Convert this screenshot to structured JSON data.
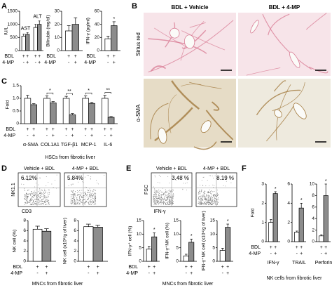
{
  "panel_labels": [
    "A",
    "B",
    "C",
    "D",
    "E",
    "F"
  ],
  "images": {
    "B": {
      "columns": [
        "BDL + Vehicle",
        "BDL + 4-MP"
      ],
      "rows": [
        "Sirius red",
        "α-SMA"
      ]
    },
    "D": {
      "titles": [
        "Vehicle + BDL",
        "4-MP + BDL"
      ],
      "gates": [
        "6.12%",
        "5.84%"
      ],
      "y_axis": "NK1.1",
      "x_axis": "CD3"
    },
    "E": {
      "titles": [
        "Vehicle + BDL",
        "4-MP + BDL"
      ],
      "gates": [
        "3.48 %",
        "8.19 %"
      ],
      "y_axis": "FSC",
      "x_axis": "IFN-γ"
    }
  },
  "captions": [
    "HSCs from fibrotic liver",
    "MNCs from fibrotic liver",
    "MNCs from fibrotic liver",
    "NK cells from fibrotic liver"
  ],
  "chart_data": [
    {
      "type": "bar",
      "ylabel": "IU/L",
      "ylim": [
        0,
        1500
      ],
      "yticks": [
        0,
        500,
        1000,
        1500
      ],
      "colors": [
        "#ffffff",
        "#8c8c8c"
      ],
      "values": [
        550,
        620,
        880,
        1000
      ],
      "errors": [
        80,
        60,
        120,
        130
      ],
      "stars": [
        null,
        null,
        null,
        null
      ],
      "group_labels": [
        "AST",
        "ALT"
      ],
      "group_label_position": "top",
      "rows": [
        {
          "label": "BDL",
          "signs": [
            "+",
            "+",
            "+",
            "+"
          ]
        },
        {
          "label": "4-MP",
          "signs": [
            "-",
            "+",
            "-",
            "+"
          ]
        }
      ]
    },
    {
      "type": "bar",
      "ylabel": "Bilirubin (mg/dl)",
      "ylim": [
        0,
        30
      ],
      "yticks": [
        0,
        10,
        20,
        30
      ],
      "colors": [
        "#ffffff",
        "#8c8c8c"
      ],
      "values": [
        15,
        20
      ],
      "errors": [
        4,
        5
      ],
      "stars": [
        null,
        null
      ],
      "rows": [
        {
          "label": "BDL",
          "signs": [
            "+",
            "+"
          ]
        },
        {
          "label": "4-MP",
          "signs": [
            "-",
            "+"
          ]
        }
      ]
    },
    {
      "type": "bar",
      "ylabel": "IFN-γ (pg/ml)",
      "ylim": [
        0,
        60
      ],
      "yticks": [
        0,
        20,
        40,
        60
      ],
      "colors": [
        "#ffffff",
        "#8c8c8c"
      ],
      "values": [
        18,
        38
      ],
      "errors": [
        4,
        6
      ],
      "stars": [
        null,
        "*"
      ],
      "rows": [
        {
          "label": "BDL",
          "signs": [
            "+",
            "+"
          ]
        },
        {
          "label": "4-MP",
          "signs": [
            "-",
            "+"
          ]
        }
      ]
    },
    {
      "type": "bar",
      "ylabel": "Fold",
      "ylim": [
        0,
        1.5
      ],
      "yticks": [
        0,
        0.5,
        {
          "value": 1,
          "label": "1.0"
        },
        1.5
      ],
      "colors": [
        "#ffffff",
        "#8c8c8c"
      ],
      "values": [
        1,
        0.75,
        1,
        0.82,
        1,
        0.35,
        1,
        0.8,
        1,
        0.25
      ],
      "errors": [
        0.12,
        0.04,
        0.1,
        0.05,
        0.08,
        0.05,
        0.1,
        0.04,
        0.12,
        0.03
      ],
      "stars": [
        null,
        null,
        null,
        "*",
        null,
        "**",
        null,
        "*",
        null,
        "**"
      ],
      "group_labels": [
        "α-SMA",
        "COL1A1",
        "TGF-β1",
        "MCP-1",
        "IL-6"
      ],
      "group_label_position": "bottom",
      "rows": [
        {
          "label": "BDL",
          "signs": [
            "+",
            "+",
            "+",
            "+",
            "+",
            "+",
            "+",
            "+",
            "+",
            "+"
          ]
        },
        {
          "label": "4-MP",
          "signs": [
            "-",
            "+",
            "-",
            "+",
            "-",
            "+",
            "-",
            "+",
            "-",
            "+"
          ]
        }
      ]
    },
    {
      "type": "bar",
      "ylabel": "NK cell (%)",
      "ylim": [
        0,
        8
      ],
      "yticks": [
        0,
        2,
        4,
        6,
        8
      ],
      "colors": [
        "#ffffff",
        "#8c8c8c"
      ],
      "values": [
        6.3,
        5.9
      ],
      "errors": [
        0.6,
        0.5
      ],
      "stars": [
        null,
        null
      ],
      "rows": [
        {
          "label": "BDL",
          "signs": [
            "+",
            "+"
          ]
        },
        {
          "label": "4-MP",
          "signs": [
            "-",
            "+"
          ]
        }
      ]
    },
    {
      "type": "bar",
      "ylabel": "NK cell (x10⁶/g of liver)",
      "ylim": [
        0,
        8
      ],
      "yticks": [
        0,
        2,
        4,
        6,
        8
      ],
      "colors": [
        "#ffffff",
        "#8c8c8c"
      ],
      "values": [
        6.8,
        6.7
      ],
      "errors": [
        0.5,
        0.4
      ],
      "stars": [
        null,
        null
      ],
      "rows": [
        {
          "signs": [
            "+",
            "+"
          ]
        },
        {
          "signs": [
            "-",
            "+"
          ]
        }
      ]
    },
    {
      "type": "bar",
      "ylabel": "IFN-γ⁺ cell (%)",
      "ylim": [
        0,
        15
      ],
      "yticks": [
        0,
        5,
        10,
        15
      ],
      "colors": [
        "#ffffff",
        "#8c8c8c"
      ],
      "values": [
        4.5,
        9
      ],
      "errors": [
        1,
        1.5
      ],
      "stars": [
        null,
        "*"
      ],
      "rows": [
        {
          "label": "BDL",
          "signs": [
            "+",
            "+"
          ]
        },
        {
          "label": "4-MP",
          "signs": [
            "-",
            "+"
          ]
        }
      ]
    },
    {
      "type": "bar",
      "ylabel": "IFN-γ⁺NK cell (%)",
      "ylim": [
        0,
        15
      ],
      "yticks": [
        0,
        5,
        10,
        15
      ],
      "colors": [
        "#ffffff",
        "#8c8c8c"
      ],
      "values": [
        2,
        7
      ],
      "errors": [
        0.6,
        1.2
      ],
      "stars": [
        null,
        "*"
      ],
      "rows": [
        {
          "signs": [
            "+",
            "+"
          ]
        },
        {
          "signs": [
            "-",
            "+"
          ]
        }
      ]
    },
    {
      "type": "bar",
      "ylabel": "IFN-γ⁺NK cell (x10⁴/g of liver)",
      "ylim": [
        0,
        15
      ],
      "yticks": [
        0,
        5,
        10,
        15
      ],
      "colors": [
        "#ffffff",
        "#8c8c8c"
      ],
      "values": [
        4,
        12.5
      ],
      "errors": [
        0.8,
        1.2
      ],
      "stars": [
        null,
        "*"
      ],
      "rows": [
        {
          "signs": [
            "+",
            "+"
          ]
        },
        {
          "signs": [
            "-",
            "+"
          ]
        }
      ]
    },
    {
      "type": "bar",
      "ylabel": "Fold",
      "ylim": [
        0,
        3
      ],
      "yticks": [
        0,
        1,
        2,
        3
      ],
      "colors": [
        "#ffffff",
        "#8c8c8c"
      ],
      "values": [
        1,
        2.5
      ],
      "errors": [
        0.15,
        0.1
      ],
      "stars": [
        null,
        "*"
      ],
      "group_labels": [
        "IFN-γ"
      ],
      "group_label_position": "bottom",
      "rows": [
        {
          "label": "BDL",
          "signs": [
            "+",
            "+"
          ]
        },
        {
          "label": "4-MP",
          "signs": [
            "-",
            "+"
          ]
        }
      ]
    },
    {
      "type": "bar",
      "ylim": [
        0,
        6
      ],
      "yticks": [
        0,
        2,
        4,
        6
      ],
      "colors": [
        "#ffffff",
        "#8c8c8c"
      ],
      "values": [
        1,
        3.5
      ],
      "errors": [
        0.1,
        0.5
      ],
      "stars": [
        null,
        "*"
      ],
      "group_labels": [
        "TRAIL"
      ],
      "group_label_position": "bottom",
      "rows": [
        {
          "signs": [
            "+",
            "+"
          ]
        },
        {
          "signs": [
            "-",
            "+"
          ]
        }
      ]
    },
    {
      "type": "bar",
      "ylim": [
        0,
        10
      ],
      "yticks": [
        0,
        2,
        4,
        6,
        8,
        10
      ],
      "colors": [
        "#ffffff",
        "#8c8c8c"
      ],
      "values": [
        1,
        8
      ],
      "errors": [
        0.2,
        2
      ],
      "stars": [
        null,
        "*"
      ],
      "group_labels": [
        "Perforin"
      ],
      "group_label_position": "bottom",
      "rows": [
        {
          "signs": [
            "+",
            "+"
          ]
        },
        {
          "signs": [
            "-",
            "+"
          ]
        }
      ]
    }
  ]
}
